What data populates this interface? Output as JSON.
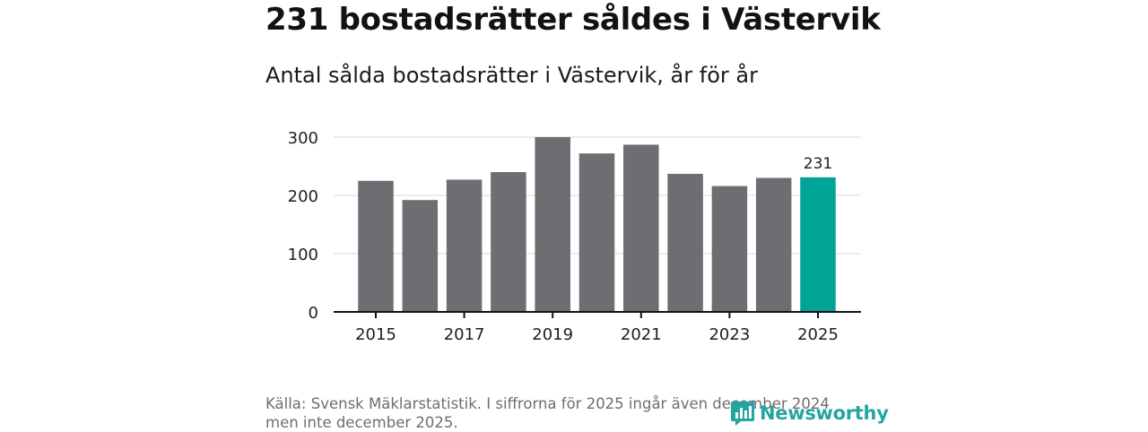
{
  "header": {
    "title": "231 bostadsrätter såldes i Västervik",
    "subtitle": "Antal sålda bostadsrätter i Västervik, år för år"
  },
  "chart_data": {
    "type": "bar",
    "title": "231 bostadsrätter såldes i Västervik",
    "subtitle": "Antal sålda bostadsrätter i Västervik, år för år",
    "xlabel": "",
    "ylabel": "",
    "categories": [
      "2015",
      "2016",
      "2017",
      "2018",
      "2019",
      "2020",
      "2021",
      "2022",
      "2023",
      "2024",
      "2025"
    ],
    "values": [
      225,
      192,
      227,
      240,
      300,
      272,
      287,
      237,
      216,
      230,
      231
    ],
    "x_tick_labels": [
      "2015",
      "2017",
      "2019",
      "2021",
      "2023",
      "2025"
    ],
    "y_ticks": [
      0,
      100,
      200,
      300
    ],
    "ylim": [
      0,
      300
    ],
    "grid": true,
    "highlight": {
      "category": "2025",
      "label": "231"
    },
    "colors": {
      "bar": "#6e6d72",
      "highlight": "#00a497",
      "grid": "#d9d9d9",
      "axis": "#121212"
    }
  },
  "footer": {
    "source": "Källa: Svensk Mäklarstatistik. I siffrorna för 2025 ingår även december 2024 men inte december 2025.",
    "brand": "Newsworthy",
    "brand_color": "#24a6a0",
    "brand_icon": "bar-chart-speech-bubble-icon"
  }
}
